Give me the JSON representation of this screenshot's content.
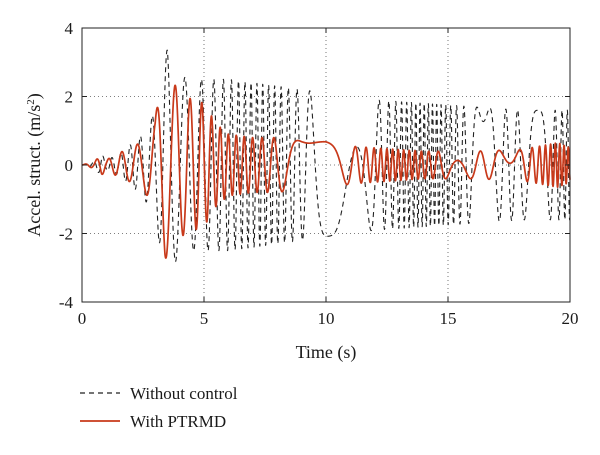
{
  "chart_data": {
    "type": "line",
    "xlabel": "Time (s)",
    "ylabel_main": "Accel. struct. (m/s",
    "ylabel_sup": "2",
    "ylabel_tail": ")",
    "xlim": [
      0,
      20
    ],
    "ylim": [
      -4,
      4
    ],
    "x_ticks": [
      0,
      5,
      10,
      15,
      20
    ],
    "y_ticks": [
      -4,
      -2,
      0,
      2,
      4
    ],
    "grid": "dotted, at major ticks",
    "legend_position": "below plot, left",
    "series": [
      {
        "name": "Without control",
        "style": "dashed",
        "color": "#222222",
        "envelope": {
          "t": [
            0,
            0.5,
            0.8,
            1.0,
            1.5,
            2.0,
            2.5,
            3.0,
            3.3,
            3.5,
            3.7,
            4.0,
            4.5,
            5.0,
            6.0,
            7.0,
            8.0,
            10.0,
            12.0,
            14.0,
            16.0,
            18.0,
            20.0
          ],
          "amplitude": [
            0,
            0.1,
            0.3,
            0.15,
            0.3,
            0.6,
            0.9,
            1.6,
            2.8,
            3.4,
            3.0,
            2.6,
            2.5,
            2.5,
            2.5,
            2.4,
            2.3,
            2.1,
            1.9,
            1.8,
            1.7,
            1.6,
            1.6
          ]
        }
      },
      {
        "name": "With PTRMD",
        "style": "solid",
        "color": "#c8391a",
        "envelope": {
          "t": [
            0,
            0.5,
            0.8,
            1.0,
            1.5,
            2.0,
            2.5,
            3.0,
            3.2,
            3.4,
            3.6,
            3.9,
            4.2,
            4.6,
            5.0,
            5.5,
            6.0,
            7.0,
            8.0,
            9.0,
            10.0,
            11.0,
            12.0,
            14.0,
            16.0,
            18.0,
            19.5,
            20.0
          ],
          "amplitude": [
            0,
            0.1,
            0.3,
            0.15,
            0.35,
            0.5,
            0.7,
            1.3,
            2.4,
            2.8,
            2.4,
            2.3,
            2.0,
            1.9,
            1.8,
            1.2,
            0.9,
            0.8,
            0.8,
            0.7,
            0.7,
            0.55,
            0.5,
            0.4,
            0.4,
            0.45,
            0.65,
            0.5
          ]
        }
      }
    ]
  }
}
